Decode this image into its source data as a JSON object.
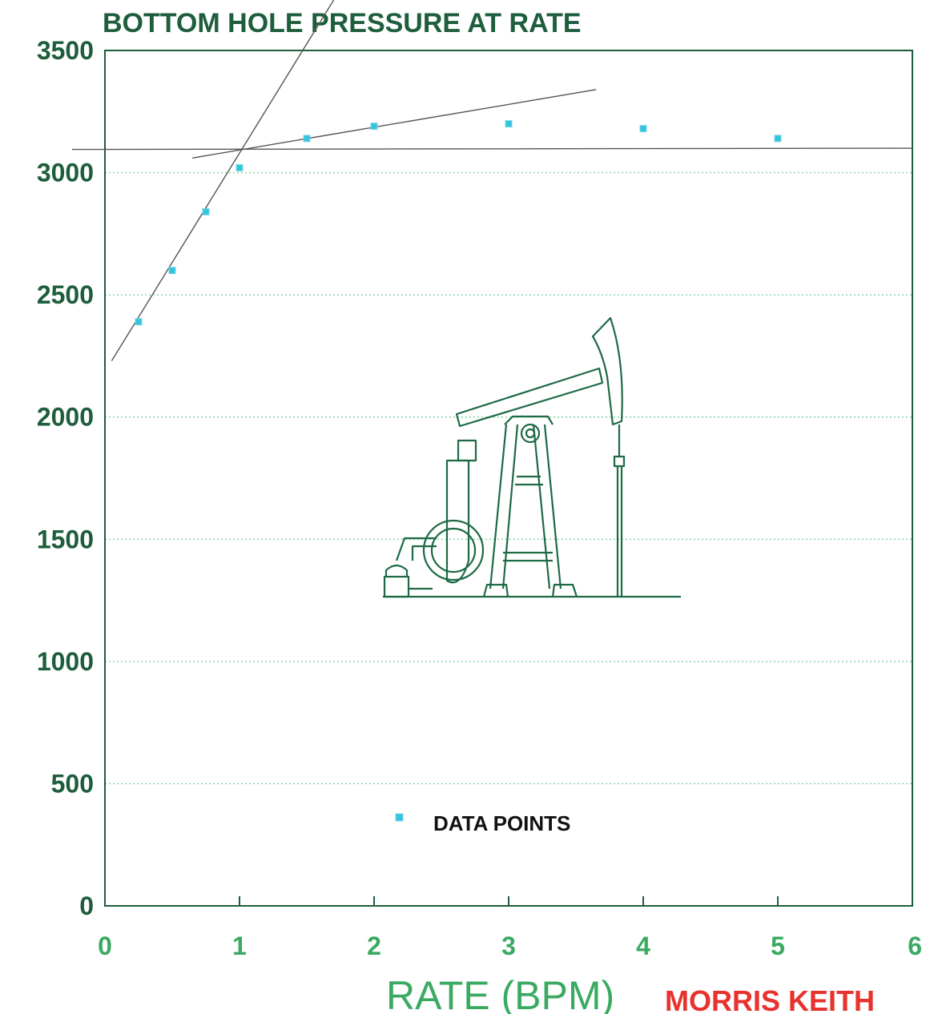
{
  "colors": {
    "axis": "#1e5e3c",
    "gridline": "#7fcfa3",
    "points": "#33c4e0",
    "trendline": "#555555",
    "xticks": "#3aaa62",
    "author": "#e8322e"
  },
  "author": "MORRIS KEITH",
  "chart_data": {
    "type": "scatter",
    "title": "BOTTOM HOLE PRESSURE AT RATE",
    "xlabel": "RATE (BPM)",
    "ylabel": "",
    "xlim": [
      0,
      6
    ],
    "ylim": [
      0,
      3500
    ],
    "xticks": [
      0,
      1,
      2,
      3,
      4,
      5,
      6
    ],
    "yticks": [
      0,
      500,
      1000,
      1500,
      2000,
      2500,
      3000,
      3500
    ],
    "grid": "horizontal dotted",
    "legend": {
      "label": "DATA POINTS",
      "placement": "bottom-center"
    },
    "series": [
      {
        "name": "DATA POINTS",
        "x": [
          0.25,
          0.5,
          0.75,
          1.0,
          1.5,
          2.0,
          3.0,
          4.0,
          5.0
        ],
        "y": [
          2390,
          2600,
          2840,
          3020,
          3140,
          3190,
          3200,
          3180,
          3140
        ]
      }
    ],
    "trend_lines": [
      {
        "x": [
          0.05,
          1.7
        ],
        "y": [
          2230,
          3720
        ]
      },
      {
        "x": [
          0.65,
          3.65
        ],
        "y": [
          3060,
          3340
        ]
      },
      {
        "x": [
          -0.25,
          6.0
        ],
        "y": [
          3095,
          3100
        ]
      }
    ]
  }
}
